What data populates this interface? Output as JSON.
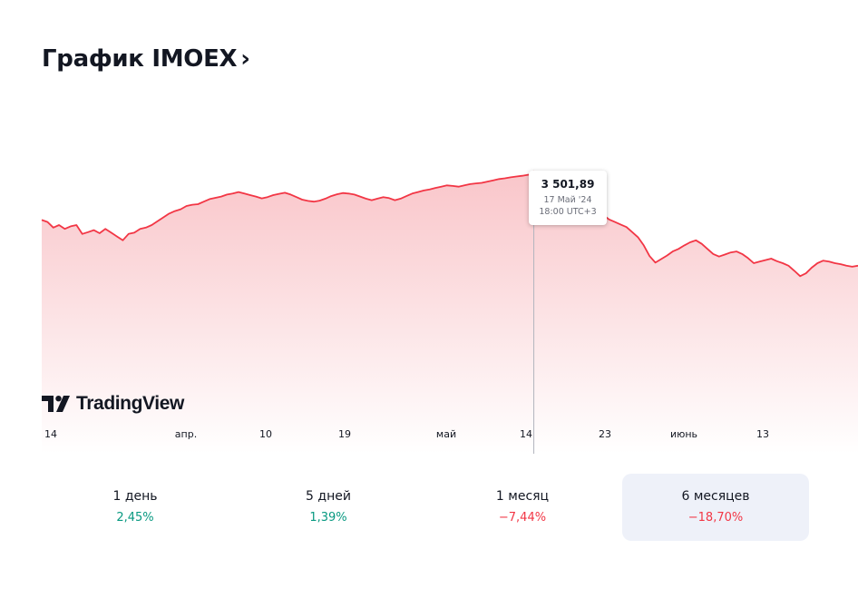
{
  "header": {
    "title": "График IMOEX",
    "chevron": "›"
  },
  "colors": {
    "line": "#f23645",
    "fill_top": "#f9c6ca",
    "positive": "#089981",
    "negative": "#f23645",
    "active_bg": "#eef1f9"
  },
  "tooltip": {
    "value": "3 501,89",
    "date": "17 Май '24",
    "time": "18:00 UTC+3"
  },
  "brand": {
    "logo_text": "TradingView",
    "logo_icon": "tradingview-logo-icon"
  },
  "periods": [
    {
      "label": "1 день",
      "value": "2,45%",
      "direction": "up",
      "active": false
    },
    {
      "label": "5 дней",
      "value": "1,39%",
      "direction": "up",
      "active": false
    },
    {
      "label": "1 месяц",
      "value": "−7,44%",
      "direction": "down",
      "active": false
    },
    {
      "label": "6 месяцев",
      "value": "−18,70%",
      "direction": "down",
      "active": true
    }
  ],
  "chart_data": {
    "type": "area",
    "title": "",
    "xlabel": "",
    "ylabel": "",
    "y_axis_visible": false,
    "grid": false,
    "x_tick_labels": [
      "14",
      "апр.",
      "10",
      "19",
      "май",
      "14",
      "23",
      "июнь",
      "13"
    ],
    "ylim": [
      2400,
      3650
    ],
    "series": [
      {
        "values": [
          3320,
          3312,
          3290,
          3300,
          3285,
          3295,
          3300,
          3265,
          3272,
          3280,
          3268,
          3285,
          3270,
          3255,
          3240,
          3265,
          3270,
          3285,
          3290,
          3300,
          3315,
          3330,
          3345,
          3355,
          3362,
          3375,
          3380,
          3382,
          3392,
          3402,
          3407,
          3412,
          3420,
          3424,
          3430,
          3424,
          3418,
          3412,
          3405,
          3410,
          3418,
          3423,
          3427,
          3420,
          3410,
          3400,
          3395,
          3392,
          3396,
          3404,
          3414,
          3421,
          3426,
          3424,
          3420,
          3412,
          3404,
          3398,
          3404,
          3410,
          3406,
          3398,
          3404,
          3414,
          3424,
          3430,
          3436,
          3440,
          3446,
          3451,
          3456,
          3454,
          3451,
          3456,
          3461,
          3464,
          3466,
          3471,
          3476,
          3481,
          3484,
          3488,
          3491,
          3494,
          3498,
          3501.89,
          3496,
          3480,
          3470,
          3458,
          3446,
          3436,
          3422,
          3410,
          3392,
          3375,
          3362,
          3340,
          3322,
          3312,
          3302,
          3292,
          3272,
          3252,
          3220,
          3178,
          3152,
          3166,
          3180,
          3196,
          3206,
          3220,
          3232,
          3240,
          3226,
          3206,
          3186,
          3176,
          3184,
          3192,
          3196,
          3186,
          3170,
          3150,
          3156,
          3162,
          3168,
          3158,
          3150,
          3140,
          3120,
          3099,
          3110,
          3132,
          3150,
          3160,
          3156,
          3150,
          3146,
          3140,
          3136,
          3140
        ]
      }
    ],
    "highlight": {
      "x_index": 85,
      "value": 3501.89
    }
  }
}
